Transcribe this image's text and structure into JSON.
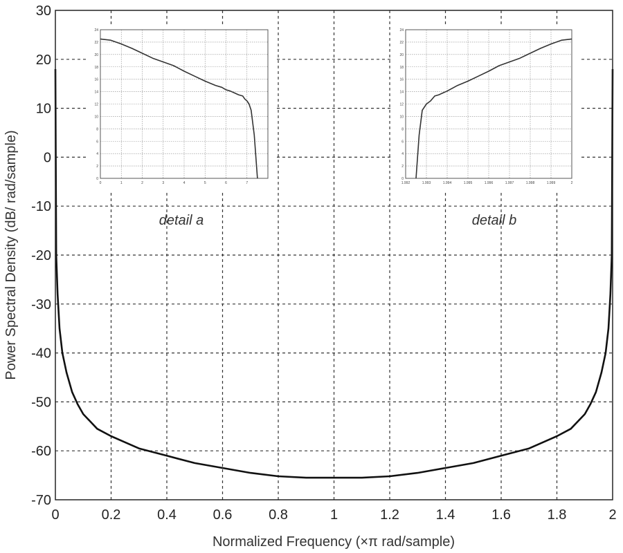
{
  "chart_data": [
    {
      "type": "line",
      "xlabel": "Normalized Frequency  (×π rad/sample)",
      "ylabel": "Power Spectral Density (dB/ rad/sample)",
      "xlim": [
        0,
        2
      ],
      "ylim": [
        -70,
        30
      ],
      "xticks": [
        "0",
        "0.2",
        "0.4",
        "0.6",
        "0.8",
        "1",
        "1.2",
        "1.4",
        "1.6",
        "1.8",
        "2"
      ],
      "yticks": [
        "-70",
        "-60",
        "-50",
        "-40",
        "-30",
        "-20",
        "-10",
        "0",
        "10",
        "20",
        "30"
      ],
      "grid": true,
      "series": [
        {
          "x": [
            0.0,
            0.003,
            0.008,
            0.015,
            0.025,
            0.04,
            0.06,
            0.08,
            0.1,
            0.15,
            0.2,
            0.3,
            0.4,
            0.5,
            0.6,
            0.7,
            0.8,
            0.9,
            1.0,
            1.1,
            1.2,
            1.3,
            1.4,
            1.5,
            1.6,
            1.7,
            1.8,
            1.85,
            1.9,
            1.92,
            1.94,
            1.96,
            1.975,
            1.985,
            1.992,
            1.997,
            2.0
          ],
          "y": [
            18,
            -20,
            -28,
            -35,
            -40,
            -44,
            -48,
            -50.5,
            -52.5,
            -55.5,
            -57,
            -59.5,
            -61,
            -62.5,
            -63.5,
            -64.5,
            -65.2,
            -65.5,
            -65.5,
            -65.5,
            -65.2,
            -64.5,
            -63.5,
            -62.5,
            -61,
            -59.5,
            -57,
            -55.5,
            -52.5,
            -50.5,
            -48,
            -44,
            -40,
            -35,
            -28,
            -20,
            18
          ]
        }
      ],
      "annotations": [
        "detail a",
        "detail b"
      ]
    },
    {
      "type": "line",
      "title": "detail a",
      "xticks": [
        "0",
        "1",
        "2",
        "3",
        "4",
        "5",
        "6",
        "7"
      ],
      "yticks": [
        "0",
        "2",
        "4",
        "6",
        "8",
        "10",
        "12",
        "14",
        "16",
        "18",
        "20",
        "22",
        "24"
      ],
      "xlim": [
        0,
        8
      ],
      "ylim": [
        0,
        24
      ],
      "grid": true,
      "series": [
        {
          "x": [
            0,
            0.5,
            1,
            1.5,
            2,
            2.5,
            3,
            3.5,
            4,
            4.5,
            5,
            5.5,
            5.8,
            6.0,
            6.2,
            6.4,
            6.6,
            6.8,
            6.9,
            7.0,
            7.1,
            7.2,
            7.35,
            7.5
          ],
          "y": [
            22.5,
            22.3,
            21.7,
            21.0,
            20.2,
            19.4,
            18.8,
            18.2,
            17.3,
            16.5,
            15.7,
            15.0,
            14.7,
            14.3,
            14.1,
            13.8,
            13.5,
            13.3,
            12.8,
            12.5,
            12.0,
            11.0,
            7,
            0
          ]
        }
      ]
    },
    {
      "type": "line",
      "title": "detail b",
      "xticks": [
        "1.992",
        "1.993",
        "1.994",
        "1.995",
        "1.996",
        "1.997",
        "1.998",
        "1.999",
        "2"
      ],
      "yticks": [
        "0",
        "2",
        "4",
        "6",
        "8",
        "10",
        "12",
        "14",
        "16",
        "18",
        "20",
        "22",
        "24"
      ],
      "xlim": [
        1.992,
        2.0
      ],
      "ylim": [
        0,
        24
      ],
      "grid": true,
      "series": [
        {
          "x": [
            1.9925,
            1.99265,
            1.9928,
            1.993,
            1.9932,
            1.9934,
            1.9936,
            1.9938,
            1.994,
            1.9945,
            1.995,
            1.9955,
            1.996,
            1.9965,
            1.997,
            1.9975,
            1.998,
            1.9985,
            1.999,
            1.9995,
            2.0
          ],
          "y": [
            0,
            7,
            11,
            12,
            12.5,
            13.3,
            13.5,
            13.8,
            14.1,
            15.0,
            15.7,
            16.5,
            17.3,
            18.2,
            18.8,
            19.4,
            20.2,
            21.0,
            21.7,
            22.3,
            22.5
          ]
        }
      ]
    }
  ]
}
